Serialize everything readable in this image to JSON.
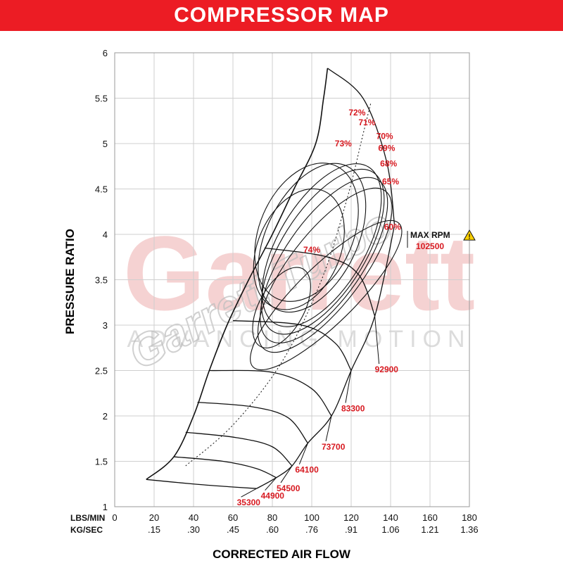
{
  "banner": {
    "title": "COMPRESSOR MAP"
  },
  "watermark": {
    "brand": "Garrett",
    "tagline": "ADVANCING MOTION",
    "product": "Garrett Turbo"
  },
  "colors": {
    "banner": "#ec1c24",
    "label_red": "#d71920",
    "grid": "#cfcfcf",
    "line": "#111111",
    "watermark": "#f2c4c4"
  },
  "icons": {
    "warning": "warning-triangle-icon"
  },
  "chart_data": {
    "type": "line",
    "title": "COMPRESSOR MAP",
    "xlabel": "CORRECTED AIR FLOW",
    "ylabel": "PRESSURE RATIO",
    "xlim": [
      0,
      180
    ],
    "ylim": [
      1,
      6
    ],
    "grid": true,
    "x_axis_row_labels": [
      "LBS/MIN",
      "KG/SEC"
    ],
    "x_ticks": [
      "0",
      "20",
      "40",
      "60",
      "80",
      "100",
      "120",
      "140",
      "160",
      "180"
    ],
    "x_ticks_secondary": [
      "",
      ".15",
      ".30",
      ".45",
      ".60",
      ".76",
      ".91",
      "1.06",
      "1.21",
      "1.36"
    ],
    "y_ticks": [
      "1",
      "1.5",
      "2",
      "2.5",
      "3",
      "3.5",
      "4",
      "4.5",
      "5",
      "5.5",
      "6"
    ],
    "surge_line": [
      [
        16,
        1.3
      ],
      [
        30,
        1.55
      ],
      [
        40,
        2.0
      ],
      [
        48,
        2.5
      ],
      [
        57,
        3.0
      ],
      [
        68,
        3.5
      ],
      [
        80,
        4.0
      ],
      [
        91,
        4.5
      ],
      [
        102,
        5.0
      ],
      [
        106,
        5.5
      ],
      [
        108,
        5.83
      ]
    ],
    "speed_lines": [
      {
        "label": "35300",
        "rpm": 35300,
        "points": [
          [
            16,
            1.3
          ],
          [
            40,
            1.25
          ],
          [
            58,
            1.22
          ],
          [
            72,
            1.2
          ]
        ]
      },
      {
        "label": "44900",
        "rpm": 44900,
        "points": [
          [
            30,
            1.55
          ],
          [
            55,
            1.5
          ],
          [
            72,
            1.42
          ],
          [
            82,
            1.32
          ]
        ]
      },
      {
        "label": "54500",
        "rpm": 54500,
        "points": [
          [
            36,
            1.82
          ],
          [
            62,
            1.76
          ],
          [
            80,
            1.66
          ],
          [
            90,
            1.45
          ]
        ]
      },
      {
        "label": "64100",
        "rpm": 64100,
        "points": [
          [
            42,
            2.15
          ],
          [
            70,
            2.1
          ],
          [
            88,
            1.98
          ],
          [
            98,
            1.7
          ]
        ]
      },
      {
        "label": "73700",
        "rpm": 73700,
        "points": [
          [
            48,
            2.5
          ],
          [
            80,
            2.48
          ],
          [
            100,
            2.3
          ],
          [
            110,
            2.0
          ]
        ]
      },
      {
        "label": "83300",
        "rpm": 83300,
        "points": [
          [
            60,
            3.05
          ],
          [
            95,
            3.0
          ],
          [
            112,
            2.8
          ],
          [
            120,
            2.5
          ]
        ]
      },
      {
        "label": "92900",
        "rpm": 92900,
        "points": [
          [
            76,
            3.85
          ],
          [
            108,
            3.75
          ],
          [
            124,
            3.55
          ],
          [
            132,
            3.1
          ]
        ]
      },
      {
        "label": "102500",
        "rpm": 102500,
        "points": [
          [
            108,
            5.83
          ],
          [
            126,
            5.5
          ],
          [
            138,
            4.8
          ],
          [
            142,
            4.1
          ]
        ]
      }
    ],
    "efficiency_islands": [
      {
        "label": "74%",
        "x": 100,
        "y": 3.8
      },
      {
        "label": "73%",
        "x": 116,
        "y": 4.97
      },
      {
        "label": "72%",
        "x": 123,
        "y": 5.31
      },
      {
        "label": "71%",
        "x": 128,
        "y": 5.2
      },
      {
        "label": "70%",
        "x": 137,
        "y": 5.05
      },
      {
        "label": "69%",
        "x": 138,
        "y": 4.92
      },
      {
        "label": "68%",
        "x": 139,
        "y": 4.75
      },
      {
        "label": "65%",
        "x": 140,
        "y": 4.55
      },
      {
        "label": "60%",
        "x": 141,
        "y": 4.05
      }
    ],
    "max_rpm_annotation": {
      "label": "MAX RPM",
      "value": "102500",
      "x": 150,
      "y": 3.96
    }
  }
}
